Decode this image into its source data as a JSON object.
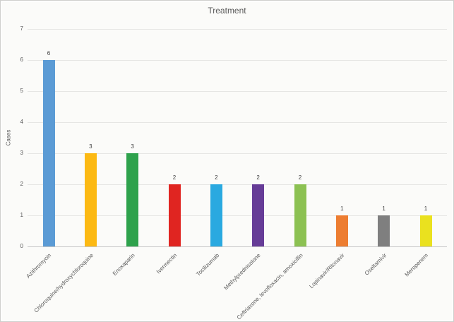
{
  "chart_data": {
    "type": "bar",
    "title": "Treatment",
    "xlabel": "",
    "ylabel": "Cases",
    "ylim": [
      0,
      7
    ],
    "ytick_step": 1,
    "yticks": [
      0,
      1,
      2,
      3,
      4,
      5,
      6,
      7
    ],
    "grid": true,
    "legend": "none",
    "data_labels_shown": true,
    "categories": [
      "Azithromycin",
      "Chloroquine/hydroxychloroquine",
      "Enoxaparin",
      "Ivermectin",
      "Tocilizumab",
      "Methylprednisolone",
      "Ceftriaxone, levofloxacin, amoxicillin",
      "Lopinavir/Ritonavir",
      "Oseltamivir",
      "Meropenem"
    ],
    "values": [
      6,
      3,
      3,
      2,
      2,
      2,
      2,
      1,
      1,
      1
    ],
    "bar_colors": [
      "#5b9bd5",
      "#fcb913",
      "#2ea24c",
      "#e02521",
      "#2aa9e0",
      "#663c97",
      "#8cc152",
      "#ed7d31",
      "#7f7f7f",
      "#eae11f"
    ],
    "colors": {
      "title_text": "#595959",
      "axis_text": "#595959",
      "data_label_text": "#404040",
      "gridline": "#e6e6e4",
      "axis_line": "#c6c6c6",
      "background": "#fbfbf9"
    }
  }
}
